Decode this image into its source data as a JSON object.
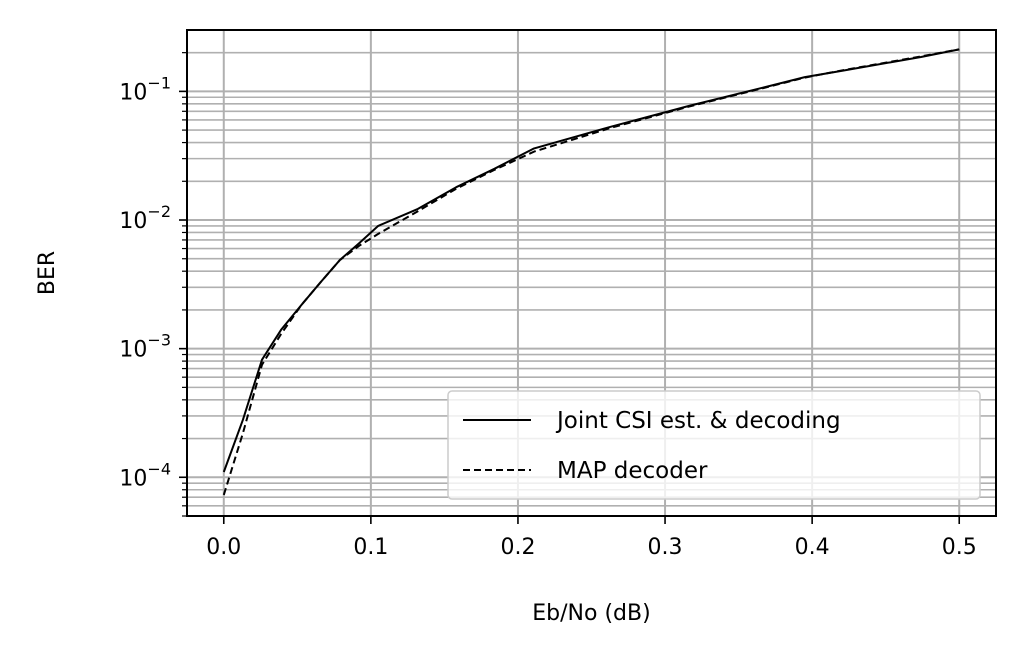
{
  "chart_data": {
    "type": "line",
    "xlabel": "Eb/No (dB)",
    "ylabel": "BER",
    "xlim": [
      -0.025,
      0.525
    ],
    "ylim": [
      5e-05,
      0.3
    ],
    "yscale": "log",
    "grid": true,
    "legend_position": "bottom-right",
    "x_ticks": [
      {
        "value": 0.0,
        "label": "0.0"
      },
      {
        "value": 0.1,
        "label": "0.1"
      },
      {
        "value": 0.2,
        "label": "0.2"
      },
      {
        "value": 0.3,
        "label": "0.3"
      },
      {
        "value": 0.4,
        "label": "0.4"
      },
      {
        "value": 0.5,
        "label": "0.5"
      }
    ],
    "y_ticks": [
      {
        "value": 0.0001,
        "base": "10",
        "exp": "−4"
      },
      {
        "value": 0.001,
        "base": "10",
        "exp": "−3"
      },
      {
        "value": 0.01,
        "base": "10",
        "exp": "−2"
      },
      {
        "value": 0.1,
        "base": "10",
        "exp": "−1"
      }
    ],
    "series": [
      {
        "name": "Joint CSI est. & decoding",
        "style": "solid",
        "color": "#000000",
        "x": [
          0.0,
          0.013,
          0.026,
          0.039,
          0.053,
          0.066,
          0.079,
          0.092,
          0.105,
          0.132,
          0.158,
          0.184,
          0.211,
          0.263,
          0.316,
          0.368,
          0.395,
          0.421,
          0.474,
          0.5
        ],
        "y": [
          0.00011,
          0.00028,
          0.00082,
          0.0014,
          0.0022,
          0.0033,
          0.0049,
          0.0066,
          0.009,
          0.0122,
          0.018,
          0.025,
          0.036,
          0.053,
          0.077,
          0.108,
          0.129,
          0.145,
          0.185,
          0.212
        ]
      },
      {
        "name": "MAP decoder",
        "style": "dashed",
        "color": "#000000",
        "x": [
          0.0,
          0.013,
          0.026,
          0.039,
          0.053,
          0.066,
          0.079,
          0.092,
          0.105,
          0.132,
          0.158,
          0.184,
          0.211,
          0.263,
          0.316,
          0.368,
          0.395,
          0.421,
          0.474,
          0.5
        ],
        "y": [
          7.3e-05,
          0.00022,
          0.00075,
          0.0013,
          0.0022,
          0.0033,
          0.0049,
          0.0063,
          0.0078,
          0.0117,
          0.0175,
          0.0245,
          0.034,
          0.052,
          0.076,
          0.107,
          0.128,
          0.146,
          0.187,
          0.212
        ]
      }
    ]
  }
}
